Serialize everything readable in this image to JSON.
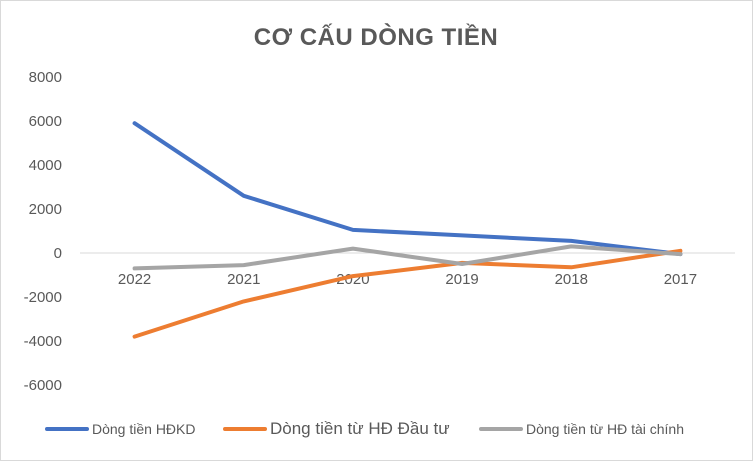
{
  "chart_data": {
    "type": "line",
    "title": "CƠ CẤU DÒNG TIỀN",
    "categories": [
      "2022",
      "2021",
      "2020",
      "2019",
      "2018",
      "2017"
    ],
    "ylim": [
      -6000,
      8000
    ],
    "yticks": [
      "8000",
      "6000",
      "4000",
      "2000",
      "0",
      "-2000",
      "-4000",
      "-6000"
    ],
    "grid": false,
    "legend_position": "bottom",
    "series": [
      {
        "name": "Dòng tiền HĐKD",
        "color": "#4472C4",
        "values": [
          5900,
          2600,
          1050,
          800,
          550,
          -50
        ]
      },
      {
        "name": "Dòng tiền từ HĐ Đầu tư",
        "color": "#ED7D31",
        "values": [
          -3800,
          -2200,
          -1050,
          -450,
          -650,
          100
        ]
      },
      {
        "name": "Dòng tiền từ HĐ tài chính",
        "color": "#A5A5A5",
        "values": [
          -700,
          -550,
          200,
          -500,
          300,
          -50
        ]
      }
    ]
  }
}
